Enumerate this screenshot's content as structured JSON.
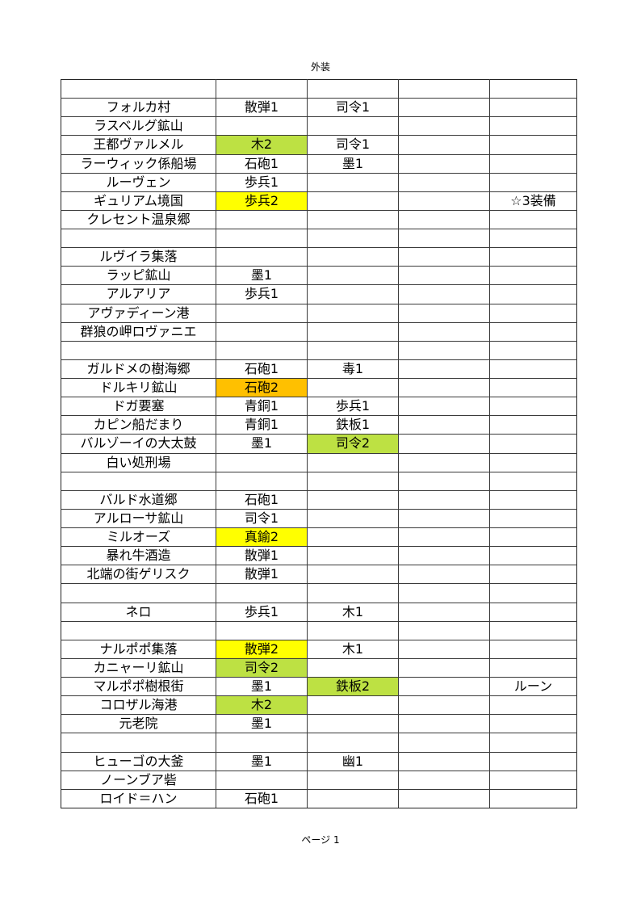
{
  "header": {
    "title": "外装"
  },
  "footer": {
    "page_label": "ページ 1"
  },
  "fills": {
    "green": "#bde143",
    "yellow": "#ffff00",
    "orange": "#ffc000"
  },
  "rows": [
    [
      {
        "t": ""
      },
      {
        "t": ""
      },
      {
        "t": ""
      },
      {
        "t": ""
      },
      {
        "t": ""
      }
    ],
    [
      {
        "t": "フォルカ村"
      },
      {
        "t": "散弾1"
      },
      {
        "t": "司令1"
      },
      {
        "t": ""
      },
      {
        "t": ""
      }
    ],
    [
      {
        "t": "ラスベルグ鉱山"
      },
      {
        "t": ""
      },
      {
        "t": ""
      },
      {
        "t": ""
      },
      {
        "t": ""
      }
    ],
    [
      {
        "t": "王都ヴァルメル"
      },
      {
        "t": "木2",
        "fill": "green"
      },
      {
        "t": "司令1"
      },
      {
        "t": ""
      },
      {
        "t": ""
      }
    ],
    [
      {
        "t": "ラーウィック係船場"
      },
      {
        "t": "石砲1"
      },
      {
        "t": "墨1"
      },
      {
        "t": ""
      },
      {
        "t": ""
      }
    ],
    [
      {
        "t": "ルーヴェン"
      },
      {
        "t": "歩兵1"
      },
      {
        "t": ""
      },
      {
        "t": ""
      },
      {
        "t": ""
      }
    ],
    [
      {
        "t": "ギュリアム境国"
      },
      {
        "t": "歩兵2",
        "fill": "yellow"
      },
      {
        "t": ""
      },
      {
        "t": ""
      },
      {
        "t": "☆3装備"
      }
    ],
    [
      {
        "t": "クレセント温泉郷"
      },
      {
        "t": ""
      },
      {
        "t": ""
      },
      {
        "t": ""
      },
      {
        "t": ""
      }
    ],
    [
      {
        "t": ""
      },
      {
        "t": ""
      },
      {
        "t": ""
      },
      {
        "t": ""
      },
      {
        "t": ""
      }
    ],
    [
      {
        "t": "ルヴイラ集落"
      },
      {
        "t": ""
      },
      {
        "t": ""
      },
      {
        "t": ""
      },
      {
        "t": ""
      }
    ],
    [
      {
        "t": "ラッピ鉱山"
      },
      {
        "t": "墨1"
      },
      {
        "t": ""
      },
      {
        "t": ""
      },
      {
        "t": ""
      }
    ],
    [
      {
        "t": "アルアリア"
      },
      {
        "t": "歩兵1"
      },
      {
        "t": ""
      },
      {
        "t": ""
      },
      {
        "t": ""
      }
    ],
    [
      {
        "t": "アヴァディーン港"
      },
      {
        "t": ""
      },
      {
        "t": ""
      },
      {
        "t": ""
      },
      {
        "t": ""
      }
    ],
    [
      {
        "t": "群狼の岬ロヴァニエ"
      },
      {
        "t": ""
      },
      {
        "t": ""
      },
      {
        "t": ""
      },
      {
        "t": ""
      }
    ],
    [
      {
        "t": ""
      },
      {
        "t": ""
      },
      {
        "t": ""
      },
      {
        "t": ""
      },
      {
        "t": ""
      }
    ],
    [
      {
        "t": "ガルドメの樹海郷"
      },
      {
        "t": "石砲1"
      },
      {
        "t": "毒1"
      },
      {
        "t": ""
      },
      {
        "t": ""
      }
    ],
    [
      {
        "t": "ドルキリ鉱山"
      },
      {
        "t": "石砲2",
        "fill": "orange"
      },
      {
        "t": ""
      },
      {
        "t": ""
      },
      {
        "t": ""
      }
    ],
    [
      {
        "t": "ドガ要塞"
      },
      {
        "t": "青銅1"
      },
      {
        "t": "歩兵1"
      },
      {
        "t": ""
      },
      {
        "t": ""
      }
    ],
    [
      {
        "t": "カピン船だまり"
      },
      {
        "t": "青銅1"
      },
      {
        "t": "鉄板1"
      },
      {
        "t": ""
      },
      {
        "t": ""
      }
    ],
    [
      {
        "t": "バルゾーイの大太鼓"
      },
      {
        "t": "墨1"
      },
      {
        "t": "司令2",
        "fill": "green"
      },
      {
        "t": ""
      },
      {
        "t": ""
      }
    ],
    [
      {
        "t": "白い処刑場"
      },
      {
        "t": ""
      },
      {
        "t": ""
      },
      {
        "t": ""
      },
      {
        "t": ""
      }
    ],
    [
      {
        "t": ""
      },
      {
        "t": ""
      },
      {
        "t": ""
      },
      {
        "t": ""
      },
      {
        "t": ""
      }
    ],
    [
      {
        "t": "バルド水道郷"
      },
      {
        "t": "石砲1"
      },
      {
        "t": ""
      },
      {
        "t": ""
      },
      {
        "t": ""
      }
    ],
    [
      {
        "t": "アルローサ鉱山"
      },
      {
        "t": "司令1"
      },
      {
        "t": ""
      },
      {
        "t": ""
      },
      {
        "t": ""
      }
    ],
    [
      {
        "t": "ミルオーズ"
      },
      {
        "t": "真鍮2",
        "fill": "yellow"
      },
      {
        "t": ""
      },
      {
        "t": ""
      },
      {
        "t": ""
      }
    ],
    [
      {
        "t": "暴れ牛酒造"
      },
      {
        "t": "散弾1"
      },
      {
        "t": ""
      },
      {
        "t": ""
      },
      {
        "t": ""
      }
    ],
    [
      {
        "t": "北端の街ゲリスク"
      },
      {
        "t": "散弾1"
      },
      {
        "t": ""
      },
      {
        "t": ""
      },
      {
        "t": ""
      }
    ],
    [
      {
        "t": ""
      },
      {
        "t": ""
      },
      {
        "t": ""
      },
      {
        "t": ""
      },
      {
        "t": ""
      }
    ],
    [
      {
        "t": "ネロ"
      },
      {
        "t": "歩兵1"
      },
      {
        "t": "木1"
      },
      {
        "t": ""
      },
      {
        "t": ""
      }
    ],
    [
      {
        "t": ""
      },
      {
        "t": ""
      },
      {
        "t": ""
      },
      {
        "t": ""
      },
      {
        "t": ""
      }
    ],
    [
      {
        "t": "ナルポポ集落"
      },
      {
        "t": "散弾2",
        "fill": "yellow"
      },
      {
        "t": "木1"
      },
      {
        "t": ""
      },
      {
        "t": ""
      }
    ],
    [
      {
        "t": "カニャーリ鉱山"
      },
      {
        "t": "司令2",
        "fill": "green"
      },
      {
        "t": ""
      },
      {
        "t": ""
      },
      {
        "t": ""
      }
    ],
    [
      {
        "t": "マルポポ樹根街"
      },
      {
        "t": "墨1"
      },
      {
        "t": "鉄板2",
        "fill": "green"
      },
      {
        "t": ""
      },
      {
        "t": "ルーン"
      }
    ],
    [
      {
        "t": "コロザル海港"
      },
      {
        "t": "木2",
        "fill": "green"
      },
      {
        "t": ""
      },
      {
        "t": ""
      },
      {
        "t": ""
      }
    ],
    [
      {
        "t": "元老院"
      },
      {
        "t": "墨1"
      },
      {
        "t": ""
      },
      {
        "t": ""
      },
      {
        "t": ""
      }
    ],
    [
      {
        "t": ""
      },
      {
        "t": ""
      },
      {
        "t": ""
      },
      {
        "t": ""
      },
      {
        "t": ""
      }
    ],
    [
      {
        "t": "ヒューゴの大釜"
      },
      {
        "t": "墨1"
      },
      {
        "t": "幽1"
      },
      {
        "t": ""
      },
      {
        "t": ""
      }
    ],
    [
      {
        "t": "ノーンブア砦"
      },
      {
        "t": ""
      },
      {
        "t": ""
      },
      {
        "t": ""
      },
      {
        "t": ""
      }
    ],
    [
      {
        "t": "ロイド＝ハン"
      },
      {
        "t": "石砲1"
      },
      {
        "t": ""
      },
      {
        "t": ""
      },
      {
        "t": ""
      }
    ]
  ]
}
